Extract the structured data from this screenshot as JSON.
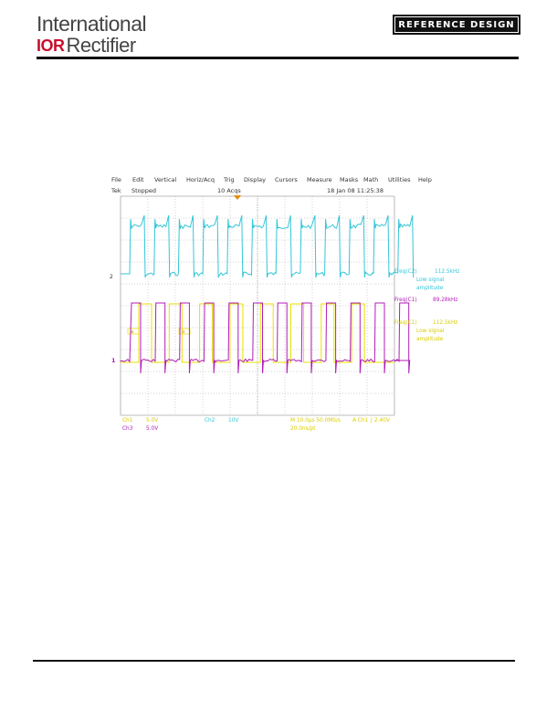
{
  "header": {
    "logo_line1": "International",
    "logo_ior": "IOR",
    "logo_line2": "Rectifier",
    "badge": "REFERENCE DESIGN"
  },
  "scope": {
    "menu": [
      "File",
      "Edit",
      "Vertical",
      "Horiz/Acq",
      "Trig",
      "Display",
      "Cursors",
      "Measure",
      "Masks",
      "Math",
      "Utilities",
      "Help"
    ],
    "status": {
      "run_state": "Tek",
      "stopped": "Stopped",
      "acqs": "10 Acqs",
      "datetime": "18 Jan 08 11:25:38"
    },
    "markers": {
      "ch2_level": "2",
      "ch1_level": "1",
      "c1_tag": "C1",
      "c2_tag": "C2",
      "cursor_a": "a",
      "cursor_b": "b"
    },
    "measurements": {
      "m1_label": "Freq(C2)",
      "m1_value": "112.5kHz",
      "m1_note1": "Low signal",
      "m1_note2": "amplitude",
      "m2_label": "Freq(C1)",
      "m2_value": "89.28kHz",
      "m3_label": "Freq(C1)",
      "m3_value": "112.5kHz",
      "m3_note1": "Low signal",
      "m3_note2": "amplitude"
    },
    "footer": {
      "ch1_label": "Ch1",
      "ch1_scale": "5.0V",
      "ch3_label": "Ch3",
      "ch3_scale": "5.0V",
      "ch2_label": "Ch2",
      "ch2_scale": "10V",
      "timebase": "M 10.0μs 50.0MS/s",
      "sample": "20.0ns/pt",
      "trigger": "A  Ch1 ∫  2.40V"
    },
    "colors": {
      "ch1": "#e8e000",
      "ch2": "#33c6d8",
      "ch3": "#b01cb8",
      "grid": "#a8a8a8"
    }
  }
}
